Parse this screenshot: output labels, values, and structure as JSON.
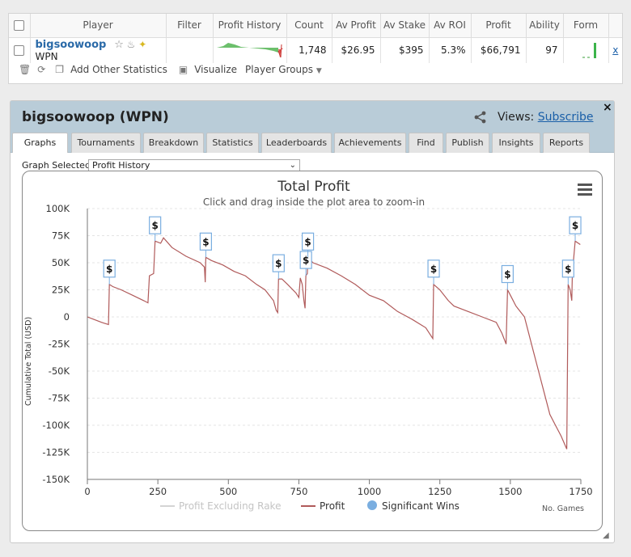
{
  "table": {
    "headers": [
      "Player",
      "Filter",
      "Profit History",
      "Count",
      "Av Profit",
      "Av Stake",
      "Av ROI",
      "Profit",
      "Ability",
      "Form"
    ],
    "row": {
      "player_name": "bigsoowoop",
      "network": "WPN",
      "count": "1,748",
      "av_profit": "$26.95",
      "av_stake": "$395",
      "av_roi": "5.3%",
      "profit": "$66,791",
      "ability": "97",
      "remove": "x"
    }
  },
  "toolbar": {
    "add_stats": "Add Other Statistics",
    "visualize": "Visualize",
    "player_groups": "Player Groups"
  },
  "panel": {
    "title": "bigsoowoop (WPN)",
    "views_label": "Views:",
    "subscribe": "Subscribe",
    "close": "×",
    "tabs": [
      "Graphs",
      "Tournaments",
      "Breakdown",
      "Statistics",
      "Leaderboards",
      "Achievements",
      "Find",
      "Publish",
      "Insights",
      "Reports"
    ],
    "graph_selected_label": "Graph Selected:",
    "graph_selected_value": "Profit History"
  },
  "colors": {
    "profit": "#b05a5a",
    "excl_rake": "#d4d4d4",
    "sig": "#7aaee0",
    "title_bar": "#b9ccd8"
  },
  "chart_data": {
    "type": "line",
    "title": "Total Profit",
    "subtitle": "Click and drag inside the plot area to zoom-in",
    "ylabel": "Cumulative Total (USD)",
    "xlabel": "No. Games",
    "xlim": [
      0,
      1750
    ],
    "ylim": [
      -150000,
      100000
    ],
    "x_ticks": [
      0,
      250,
      500,
      750,
      1000,
      1250,
      1500,
      1750
    ],
    "y_ticks": [
      100000,
      75000,
      50000,
      25000,
      0,
      -25000,
      -50000,
      -75000,
      -100000,
      -125000,
      -150000
    ],
    "y_tick_labels": [
      "100K",
      "75K",
      "50K",
      "25K",
      "0",
      "-25K",
      "-50K",
      "-75K",
      "-100K",
      "-125K",
      "-150K"
    ],
    "legend": [
      "Profit Excluding Rake",
      "Profit",
      "Significant Wins"
    ],
    "marker_label": "$",
    "series": [
      {
        "name": "Profit",
        "points": [
          [
            0,
            0
          ],
          [
            20,
            -2000
          ],
          [
            50,
            -5000
          ],
          [
            75,
            -7000
          ],
          [
            78,
            30000
          ],
          [
            90,
            28000
          ],
          [
            120,
            25000
          ],
          [
            160,
            20000
          ],
          [
            200,
            15000
          ],
          [
            215,
            13000
          ],
          [
            220,
            38000
          ],
          [
            235,
            40000
          ],
          [
            240,
            70000
          ],
          [
            260,
            68000
          ],
          [
            270,
            73000
          ],
          [
            300,
            64000
          ],
          [
            350,
            56000
          ],
          [
            400,
            50000
          ],
          [
            415,
            46000
          ],
          [
            418,
            32000
          ],
          [
            420,
            55000
          ],
          [
            440,
            52000
          ],
          [
            480,
            48000
          ],
          [
            520,
            42000
          ],
          [
            560,
            38000
          ],
          [
            600,
            30000
          ],
          [
            630,
            25000
          ],
          [
            660,
            15000
          ],
          [
            670,
            6000
          ],
          [
            675,
            4000
          ],
          [
            678,
            35000
          ],
          [
            690,
            35000
          ],
          [
            710,
            30000
          ],
          [
            740,
            22000
          ],
          [
            750,
            18000
          ],
          [
            755,
            36000
          ],
          [
            762,
            30000
          ],
          [
            768,
            15000
          ],
          [
            772,
            8000
          ],
          [
            775,
            38000
          ],
          [
            780,
            40000
          ],
          [
            782,
            55000
          ],
          [
            800,
            50000
          ],
          [
            850,
            45000
          ],
          [
            900,
            38000
          ],
          [
            950,
            30000
          ],
          [
            1000,
            20000
          ],
          [
            1050,
            15000
          ],
          [
            1100,
            5000
          ],
          [
            1150,
            -2000
          ],
          [
            1200,
            -10000
          ],
          [
            1225,
            -20000
          ],
          [
            1228,
            30000
          ],
          [
            1250,
            25000
          ],
          [
            1280,
            15000
          ],
          [
            1300,
            10000
          ],
          [
            1350,
            5000
          ],
          [
            1400,
            0
          ],
          [
            1450,
            -5000
          ],
          [
            1470,
            -15000
          ],
          [
            1485,
            -25000
          ],
          [
            1490,
            25000
          ],
          [
            1500,
            20000
          ],
          [
            1520,
            10000
          ],
          [
            1550,
            0
          ],
          [
            1580,
            -30000
          ],
          [
            1600,
            -50000
          ],
          [
            1620,
            -70000
          ],
          [
            1640,
            -90000
          ],
          [
            1660,
            -100000
          ],
          [
            1680,
            -110000
          ],
          [
            1700,
            -122000
          ],
          [
            1705,
            30000
          ],
          [
            1712,
            25000
          ],
          [
            1718,
            15000
          ],
          [
            1720,
            40000
          ],
          [
            1730,
            70000
          ],
          [
            1748,
            66791
          ]
        ]
      },
      {
        "name": "Significant Wins",
        "points": [
          [
            78,
            30000
          ],
          [
            240,
            70000
          ],
          [
            420,
            55000
          ],
          [
            678,
            35000
          ],
          [
            775,
            38000
          ],
          [
            782,
            55000
          ],
          [
            1228,
            30000
          ],
          [
            1490,
            25000
          ],
          [
            1705,
            30000
          ],
          [
            1730,
            70000
          ]
        ]
      }
    ]
  }
}
